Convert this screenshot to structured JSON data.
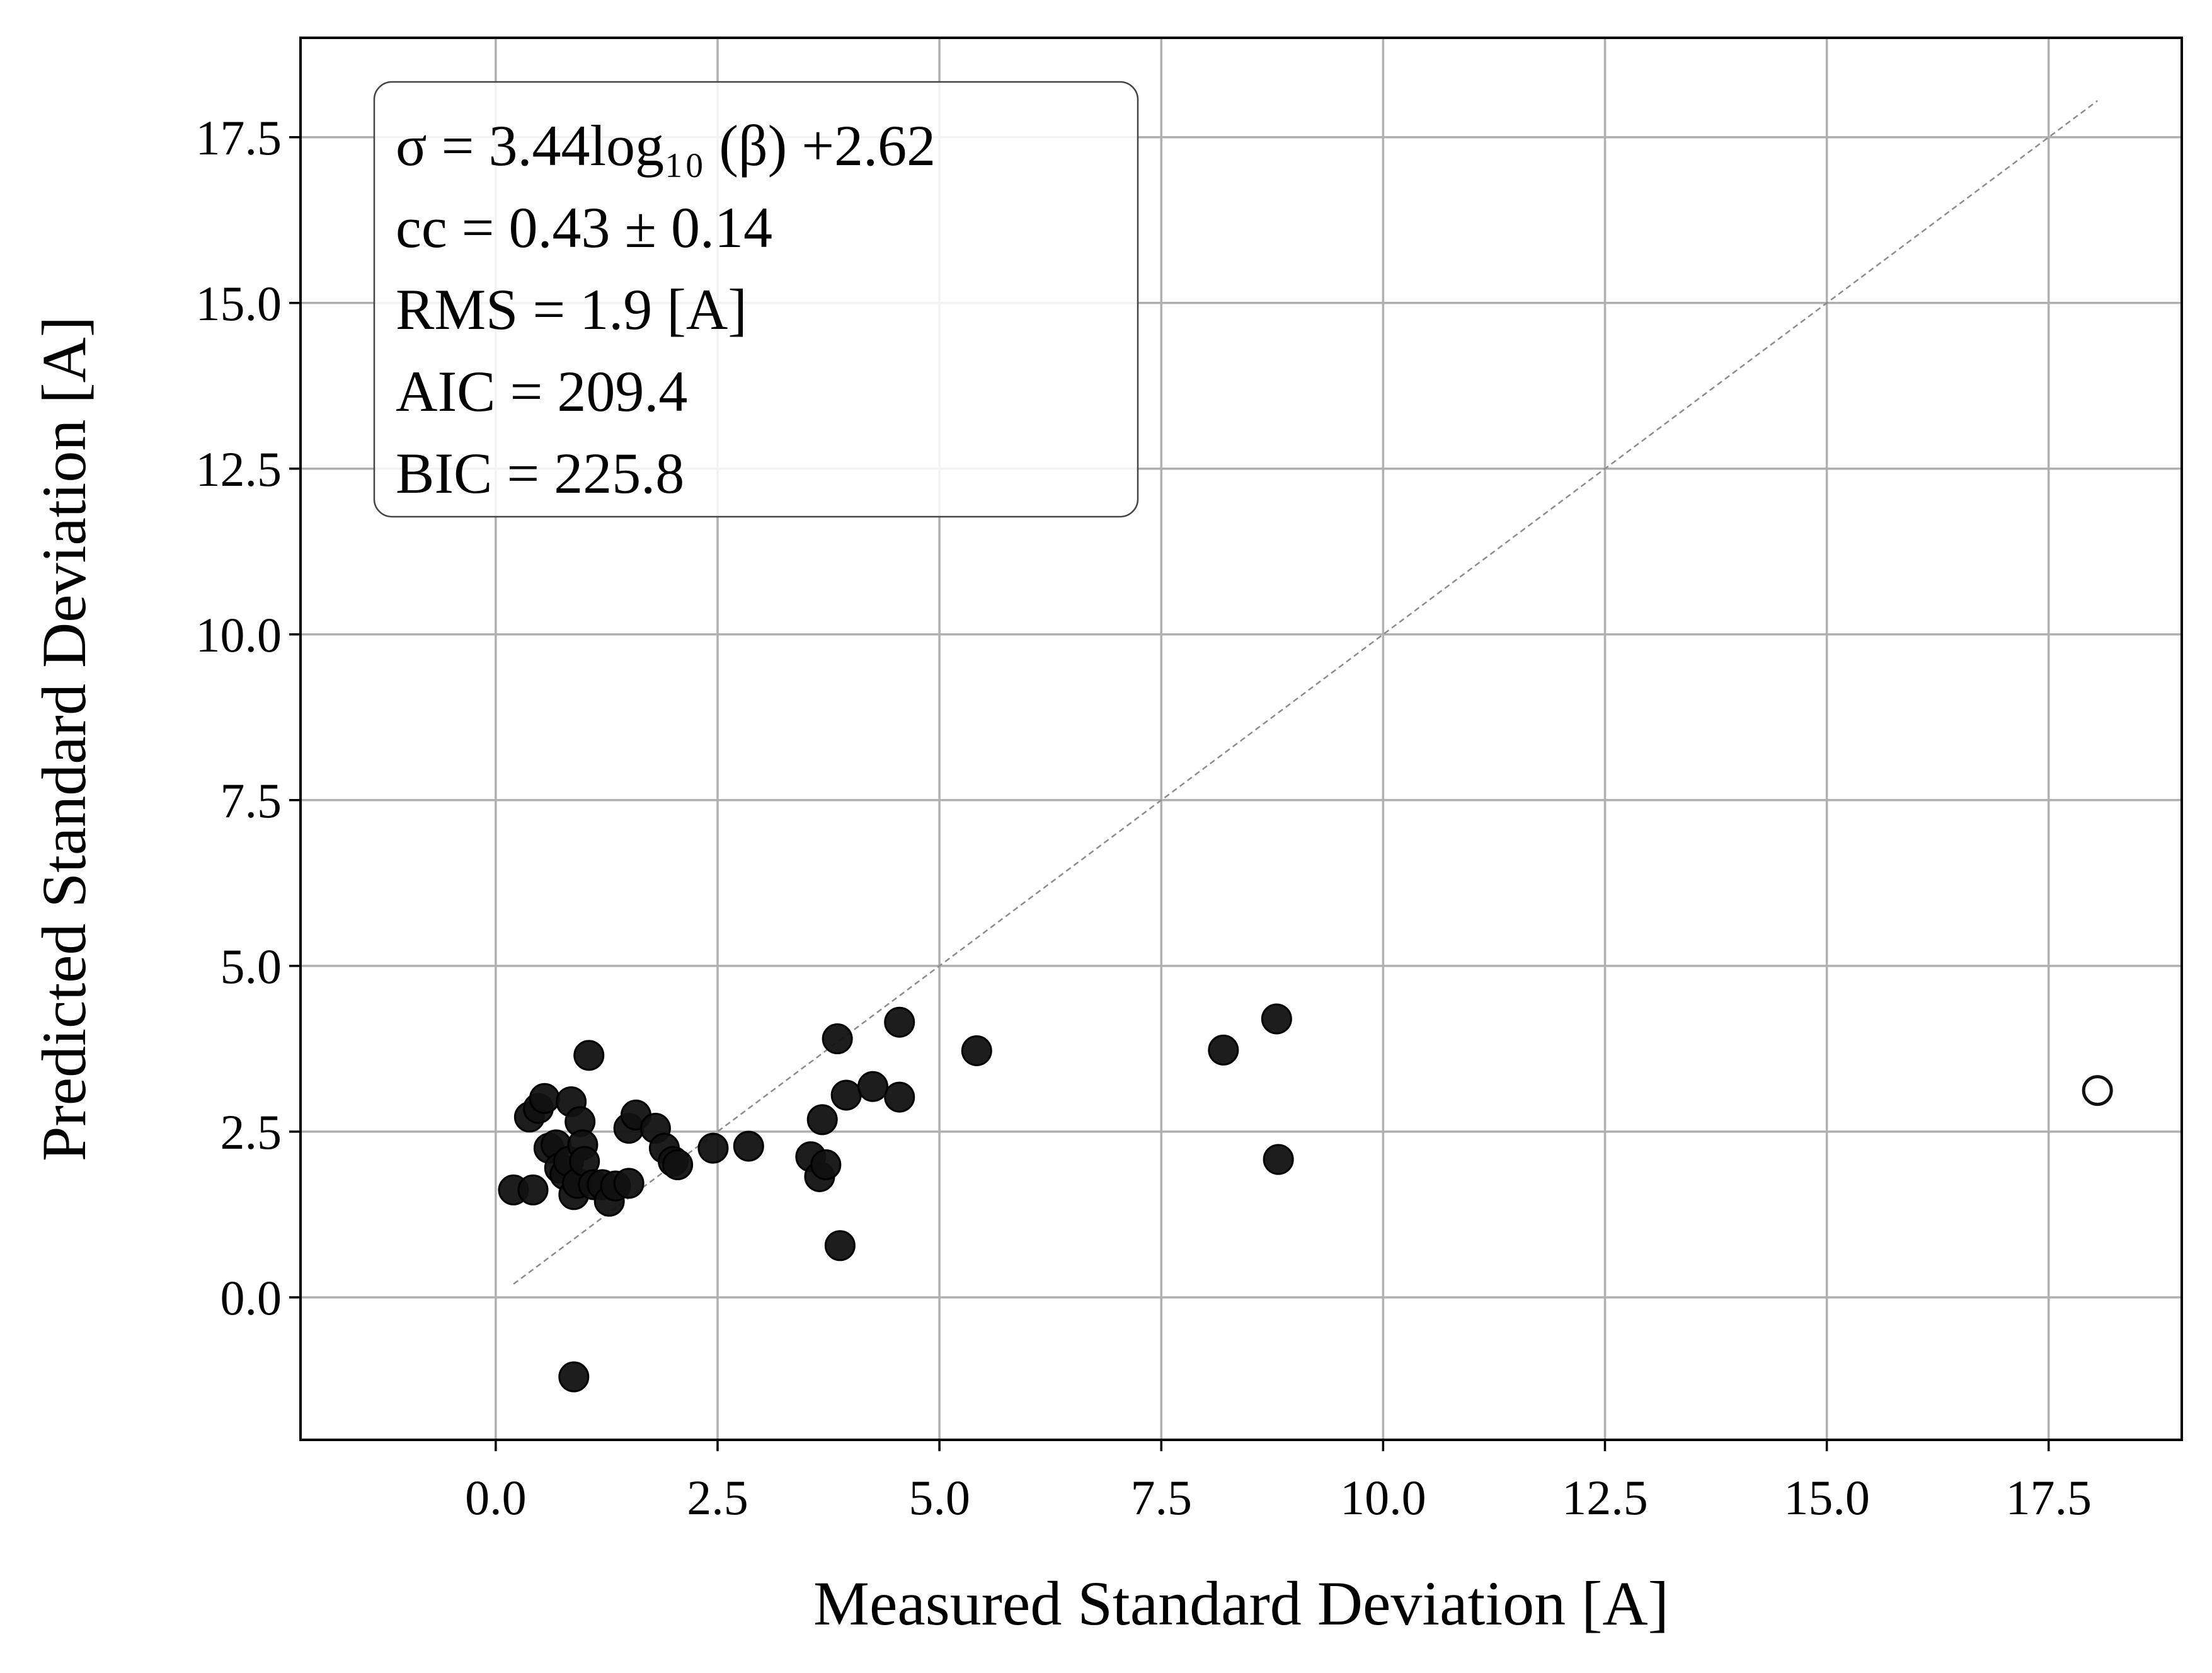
{
  "chart_data": {
    "type": "scatter",
    "title": "",
    "xlabel": "Measured Standard Deviation [A]",
    "ylabel": "Predicted Standard Deviation [A]",
    "xlim": [
      -2.2,
      19.0
    ],
    "ylim": [
      -2.15,
      19.0
    ],
    "grid": true,
    "x_ticks": [
      0.0,
      2.5,
      5.0,
      7.5,
      10.0,
      12.5,
      15.0,
      17.5
    ],
    "x_tick_labels": [
      "0.0",
      "2.5",
      "5.0",
      "7.5",
      "10.0",
      "12.5",
      "15.0",
      "17.5"
    ],
    "y_ticks": [
      0.0,
      2.5,
      5.0,
      7.5,
      10.0,
      12.5,
      15.0,
      17.5
    ],
    "y_tick_labels": [
      "0.0",
      "2.5",
      "5.0",
      "7.5",
      "10.0",
      "12.5",
      "15.0",
      "17.5"
    ],
    "identity_line": {
      "from": [
        0.2,
        0.2
      ],
      "to": [
        18.05,
        18.05
      ],
      "color": "#8c8c8c",
      "style": "dashed"
    },
    "annotation": {
      "placement": "top-left",
      "lines": [
        "σ = 3.44log₁₀ (β) +2.62",
        "cc = 0.43 ± 0.14",
        "RMS = 1.9 [A]",
        "AIC = 209.4",
        "BIC = 225.8"
      ]
    },
    "marker_color": "#111111",
    "points": [
      {
        "x": 0.2,
        "y": 1.62
      },
      {
        "x": 0.42,
        "y": 1.62
      },
      {
        "x": 0.38,
        "y": 2.72
      },
      {
        "x": 0.48,
        "y": 2.85
      },
      {
        "x": 0.55,
        "y": 3.0
      },
      {
        "x": 0.6,
        "y": 2.25
      },
      {
        "x": 0.68,
        "y": 2.3
      },
      {
        "x": 0.72,
        "y": 1.95
      },
      {
        "x": 0.78,
        "y": 1.85
      },
      {
        "x": 0.82,
        "y": 2.05
      },
      {
        "x": 0.85,
        "y": 2.95
      },
      {
        "x": 0.88,
        "y": 1.55
      },
      {
        "x": 0.92,
        "y": 1.72
      },
      {
        "x": 0.95,
        "y": 2.65
      },
      {
        "x": 0.98,
        "y": 2.3
      },
      {
        "x": 1.0,
        "y": 2.05
      },
      {
        "x": 1.05,
        "y": 3.65
      },
      {
        "x": 1.1,
        "y": 1.7
      },
      {
        "x": 1.2,
        "y": 1.7
      },
      {
        "x": 1.28,
        "y": 1.45
      },
      {
        "x": 1.35,
        "y": 1.68
      },
      {
        "x": 1.5,
        "y": 1.72
      },
      {
        "x": 1.5,
        "y": 2.55
      },
      {
        "x": 1.58,
        "y": 2.75
      },
      {
        "x": 1.8,
        "y": 2.55
      },
      {
        "x": 1.9,
        "y": 2.25
      },
      {
        "x": 2.0,
        "y": 2.05
      },
      {
        "x": 2.05,
        "y": 2.0
      },
      {
        "x": 2.45,
        "y": 2.25
      },
      {
        "x": 2.85,
        "y": 2.28
      },
      {
        "x": 0.88,
        "y": -1.2
      },
      {
        "x": 3.55,
        "y": 2.12
      },
      {
        "x": 3.65,
        "y": 1.82
      },
      {
        "x": 3.72,
        "y": 2.0
      },
      {
        "x": 3.68,
        "y": 2.68
      },
      {
        "x": 3.85,
        "y": 3.9
      },
      {
        "x": 3.88,
        "y": 0.78
      },
      {
        "x": 3.95,
        "y": 3.05
      },
      {
        "x": 4.25,
        "y": 3.18
      },
      {
        "x": 4.55,
        "y": 4.15
      },
      {
        "x": 4.55,
        "y": 3.02
      },
      {
        "x": 5.42,
        "y": 3.72
      },
      {
        "x": 8.2,
        "y": 3.73
      },
      {
        "x": 8.8,
        "y": 4.2
      },
      {
        "x": 8.82,
        "y": 2.08
      }
    ],
    "outliers": [
      {
        "x": 18.05,
        "y": 3.12
      }
    ]
  }
}
